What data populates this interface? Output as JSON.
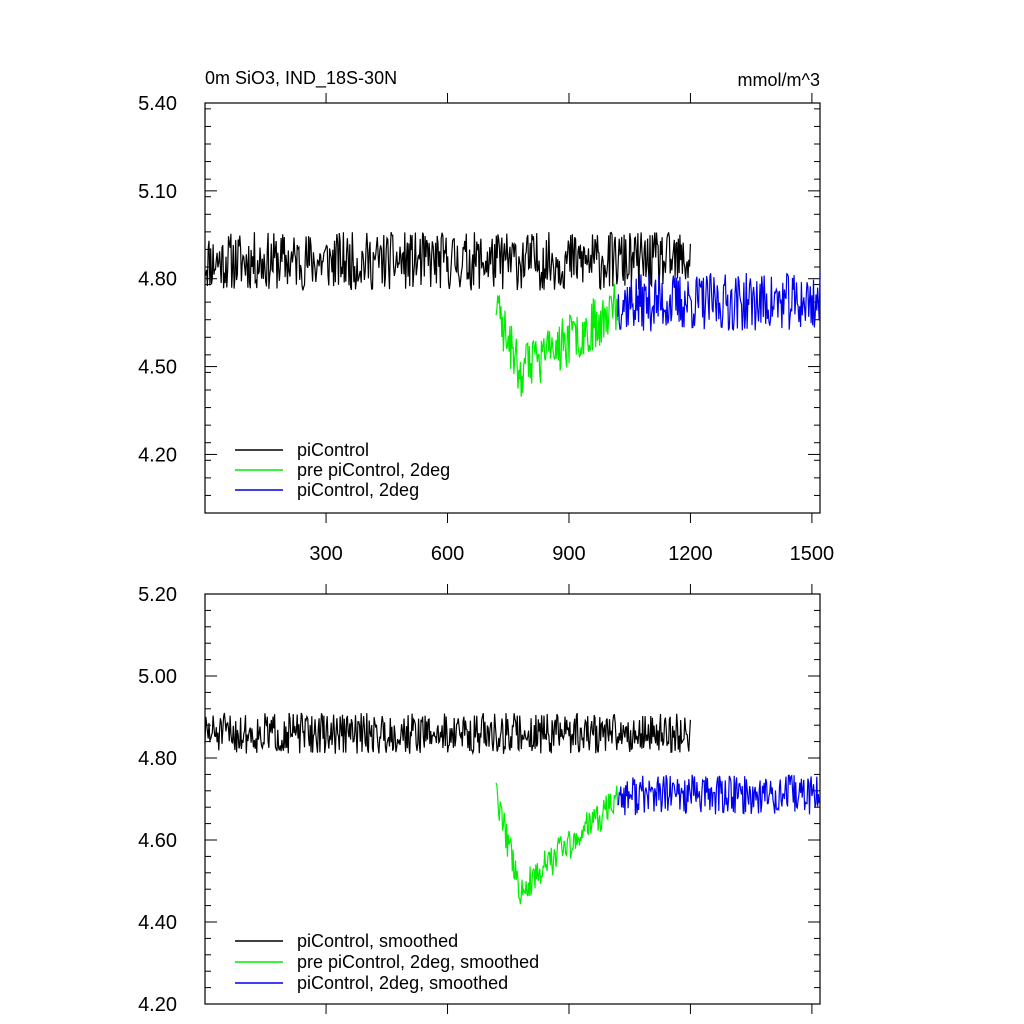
{
  "chart_data": [
    {
      "type": "line",
      "title": "0m SiO3, IND_18S-30N",
      "units": "mmol/m^3",
      "xlim": [
        1,
        1520
      ],
      "ylim": [
        4.0,
        5.4
      ],
      "yticks": [
        "4.20",
        "4.50",
        "4.80",
        "5.10",
        "5.40"
      ],
      "yticks_values": [
        4.2,
        4.5,
        4.8,
        5.1,
        5.4
      ],
      "xticks": [
        "300",
        "600",
        "900",
        "1200",
        "1500"
      ],
      "xticks_values": [
        300,
        600,
        900,
        1200,
        1500
      ],
      "legend_position": "bottom-left",
      "series": [
        {
          "name": "piControl",
          "color": "#000000",
          "x_range": [
            1,
            1200
          ],
          "base": 4.86,
          "noise": 0.1,
          "seed": 11
        },
        {
          "name": "pre piControl, 2deg",
          "color": "#00ee00",
          "x_range": [
            720,
            1020
          ],
          "base": 4.55,
          "noise": 0.09,
          "seed": 23
        },
        {
          "name": "piControl, 2deg",
          "color": "#0000ee",
          "x_range": [
            1020,
            1520
          ],
          "base": 4.72,
          "noise": 0.1,
          "seed": 37
        }
      ]
    },
    {
      "type": "line",
      "xlim": [
        1,
        1520
      ],
      "ylim": [
        4.2,
        5.2
      ],
      "yticks": [
        "4.20",
        "4.40",
        "4.60",
        "4.80",
        "5.00",
        "5.20"
      ],
      "yticks_values": [
        4.2,
        4.4,
        4.6,
        4.8,
        5.0,
        5.2
      ],
      "xticks_values": [
        300,
        600,
        900,
        1200,
        1500
      ],
      "legend_position": "bottom-left",
      "series": [
        {
          "name": "piControl, smoothed",
          "color": "#000000",
          "x_range": [
            1,
            1200
          ],
          "base": 4.86,
          "noise": 0.05,
          "seed": 51
        },
        {
          "name": "pre piControl, 2deg, smoothed",
          "color": "#00ee00",
          "x_range": [
            720,
            1020
          ],
          "base": 4.55,
          "noise": 0.04,
          "seed": 63
        },
        {
          "name": "piControl, 2deg, smoothed",
          "color": "#0000ee",
          "x_range": [
            1020,
            1520
          ],
          "base": 4.71,
          "noise": 0.05,
          "seed": 77
        }
      ]
    }
  ]
}
